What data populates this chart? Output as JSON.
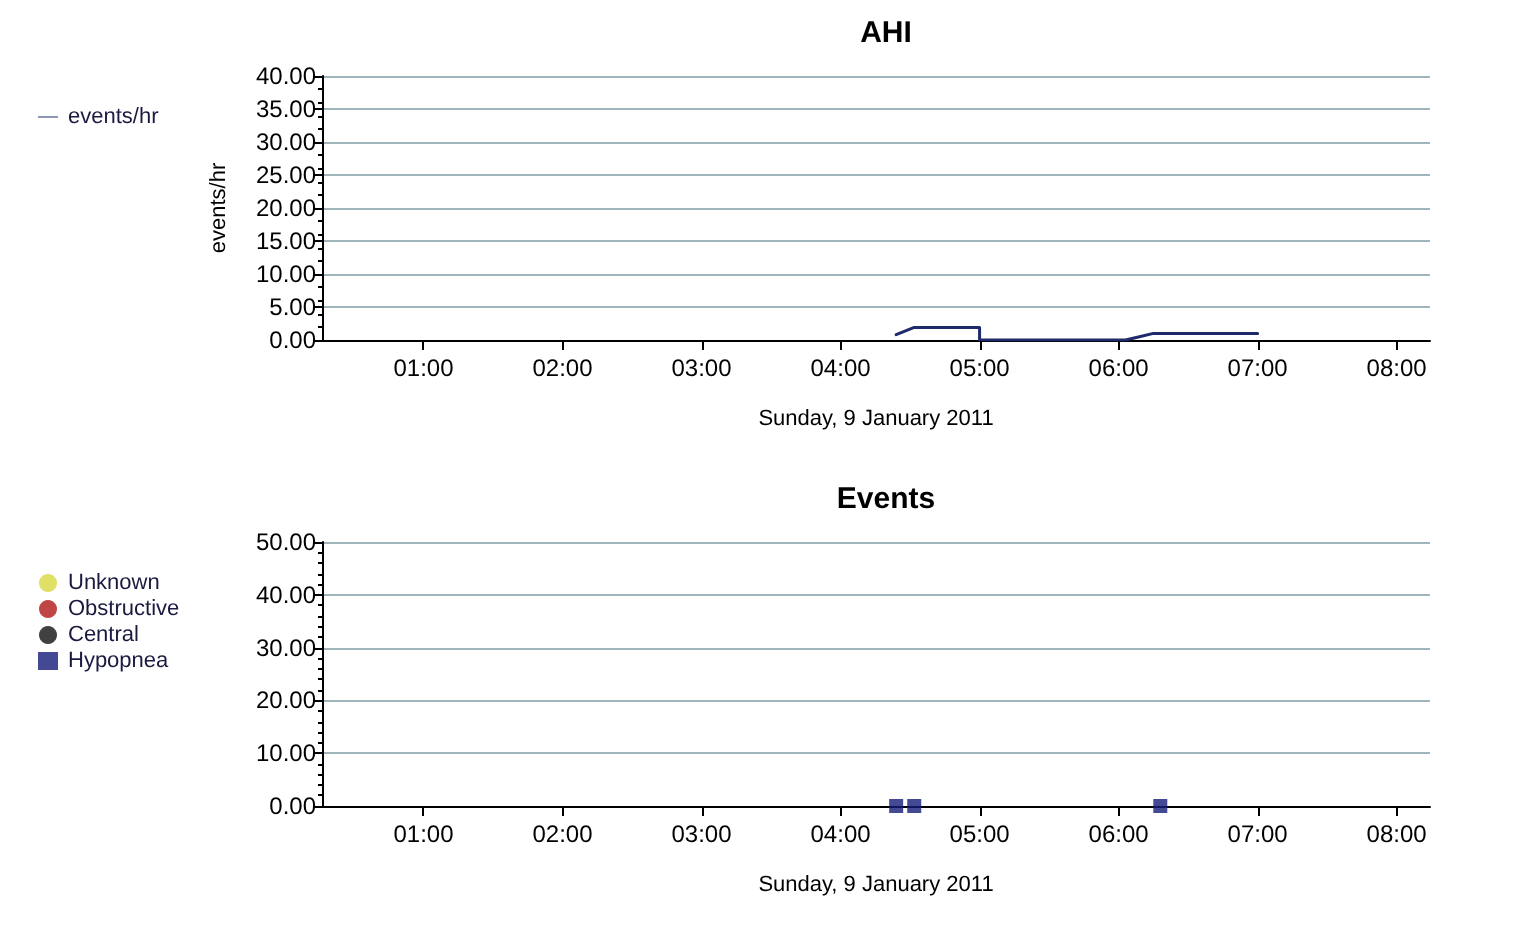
{
  "chart_data": [
    {
      "type": "line",
      "title": "AHI",
      "xlabel": "Sunday, 9 January 2011",
      "ylabel": "events/hr",
      "legend": "left",
      "grid": "y",
      "marker": "none",
      "line_style": "solid",
      "xlim": [
        0.27,
        8.24
      ],
      "xticks": [
        {
          "value": 1,
          "label": "01:00"
        },
        {
          "value": 2,
          "label": "02:00"
        },
        {
          "value": 3,
          "label": "03:00"
        },
        {
          "value": 4,
          "label": "04:00"
        },
        {
          "value": 5,
          "label": "05:00"
        },
        {
          "value": 6,
          "label": "06:00"
        },
        {
          "value": 7,
          "label": "07:00"
        },
        {
          "value": 8,
          "label": "08:00"
        }
      ],
      "ylim": [
        0,
        40
      ],
      "yticks": [
        {
          "value": 0,
          "label": "0.00"
        },
        {
          "value": 5,
          "label": "5.00"
        },
        {
          "value": 10,
          "label": "10.00"
        },
        {
          "value": 15,
          "label": "15.00"
        },
        {
          "value": 20,
          "label": "20.00"
        },
        {
          "value": 25,
          "label": "25.00"
        },
        {
          "value": 30,
          "label": "30.00"
        },
        {
          "value": 35,
          "label": "35.00"
        },
        {
          "value": 40,
          "label": "40.00"
        }
      ],
      "series": [
        {
          "name": "events/hr",
          "color": "#1f2a6b",
          "x": [
            4.4,
            4.53,
            5.0,
            5.0,
            6.05,
            6.15,
            6.25,
            7.0
          ],
          "values": [
            0.8,
            1.9,
            1.9,
            0,
            0,
            0.5,
            1.0,
            1.0
          ]
        }
      ]
    },
    {
      "type": "scatter",
      "title": "Events",
      "xlabel": "Sunday, 9 January 2011",
      "legend": "left",
      "grid": "y",
      "xlim": [
        0.27,
        8.24
      ],
      "xticks": [
        {
          "value": 1,
          "label": "01:00"
        },
        {
          "value": 2,
          "label": "02:00"
        },
        {
          "value": 3,
          "label": "03:00"
        },
        {
          "value": 4,
          "label": "04:00"
        },
        {
          "value": 5,
          "label": "05:00"
        },
        {
          "value": 6,
          "label": "06:00"
        },
        {
          "value": 7,
          "label": "07:00"
        },
        {
          "value": 8,
          "label": "08:00"
        }
      ],
      "ylim": [
        0,
        50
      ],
      "yticks": [
        {
          "value": 0,
          "label": "0.00"
        },
        {
          "value": 10,
          "label": "10.00"
        },
        {
          "value": 20,
          "label": "20.00"
        },
        {
          "value": 30,
          "label": "30.00"
        },
        {
          "value": 40,
          "label": "40.00"
        },
        {
          "value": 50,
          "label": "50.00"
        }
      ],
      "series": [
        {
          "name": "Unknown",
          "color": "#d8d840",
          "marker": "circle"
        },
        {
          "name": "Obstructive",
          "color": "#b01818",
          "marker": "circle"
        },
        {
          "name": "Central",
          "color": "#111111",
          "marker": "circle"
        },
        {
          "name": "Hypopnea",
          "color": "#141c78",
          "marker": "square",
          "x": [
            4.4,
            4.53,
            6.3
          ],
          "values": [
            0,
            0,
            0
          ]
        }
      ]
    }
  ]
}
